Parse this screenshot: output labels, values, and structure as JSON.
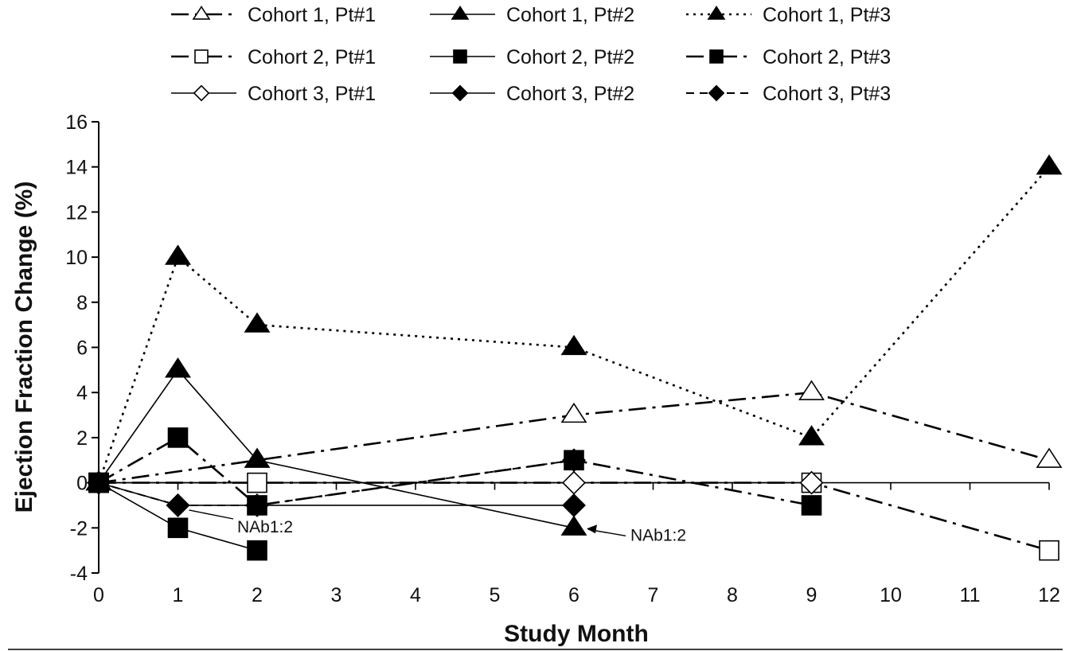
{
  "chart_data": {
    "type": "line",
    "xlabel": "Study Month",
    "ylabel": "Ejection Fraction Change (%)",
    "xlim": [
      0,
      12
    ],
    "ylim": [
      -4,
      16
    ],
    "x_ticks": [
      0,
      1,
      2,
      3,
      4,
      5,
      6,
      7,
      8,
      9,
      10,
      11,
      12
    ],
    "y_ticks": [
      -4,
      -2,
      0,
      2,
      4,
      6,
      8,
      10,
      12,
      14,
      16
    ],
    "grid": false,
    "legend_position": "top",
    "series": [
      {
        "name": "Cohort 1, Pt#1",
        "marker": "triangle",
        "filled": false,
        "dash": "dashdot",
        "points": [
          [
            0,
            0
          ],
          [
            6,
            3
          ],
          [
            9,
            4
          ],
          [
            12,
            1
          ]
        ]
      },
      {
        "name": "Cohort 1, Pt#2",
        "marker": "triangle",
        "filled": true,
        "dash": "solid",
        "points": [
          [
            0,
            0
          ],
          [
            1,
            5
          ],
          [
            2,
            1
          ],
          [
            6,
            -2
          ]
        ]
      },
      {
        "name": "Cohort 1, Pt#3",
        "marker": "triangle",
        "filled": true,
        "dash": "dotted",
        "points": [
          [
            0,
            0
          ],
          [
            1,
            10
          ],
          [
            2,
            7
          ],
          [
            6,
            6
          ],
          [
            9,
            2
          ],
          [
            12,
            14
          ]
        ]
      },
      {
        "name": "Cohort 2, Pt#1",
        "marker": "square",
        "filled": false,
        "dash": "dashdot",
        "points": [
          [
            0,
            0
          ],
          [
            2,
            0
          ],
          [
            9,
            0
          ],
          [
            12,
            -3
          ]
        ]
      },
      {
        "name": "Cohort 2, Pt#2",
        "marker": "square",
        "filled": true,
        "dash": "solid",
        "points": [
          [
            0,
            0
          ],
          [
            1,
            -2
          ],
          [
            2,
            -3
          ]
        ]
      },
      {
        "name": "Cohort 2, Pt#3",
        "marker": "square",
        "filled": true,
        "dash": "dashdot",
        "points": [
          [
            0,
            0
          ],
          [
            1,
            2
          ],
          [
            2,
            -1
          ],
          [
            6,
            1
          ],
          [
            9,
            -1
          ]
        ]
      },
      {
        "name": "Cohort 3, Pt#1",
        "marker": "diamond",
        "filled": false,
        "dash": "solid",
        "points": [
          [
            0,
            0
          ],
          [
            6,
            0
          ],
          [
            9,
            0
          ]
        ]
      },
      {
        "name": "Cohort 3, Pt#2",
        "marker": "diamond",
        "filled": true,
        "dash": "solid",
        "points": [
          [
            0,
            0
          ],
          [
            1,
            -1
          ],
          [
            6,
            -1
          ]
        ]
      },
      {
        "name": "Cohort 3, Pt#3",
        "marker": "diamond",
        "filled": true,
        "dash": "dashed",
        "points": [
          [
            0,
            0
          ],
          [
            1,
            -1
          ],
          [
            2,
            -1
          ],
          [
            6,
            1
          ]
        ]
      }
    ],
    "annotations": [
      {
        "text": "NAb1:2",
        "x": 1,
        "y": -1
      },
      {
        "text": "NAb1:2",
        "x": 6,
        "y": -2
      }
    ]
  }
}
